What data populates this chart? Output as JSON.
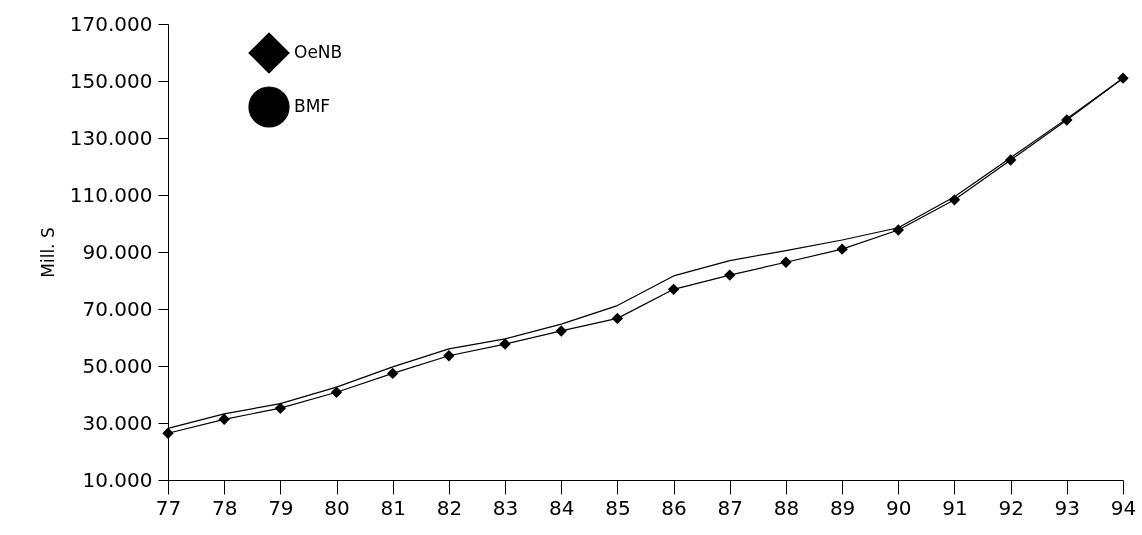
{
  "chart_data": {
    "type": "line",
    "ylabel": "Mill. S",
    "categories": [
      "77",
      "78",
      "79",
      "80",
      "81",
      "82",
      "83",
      "84",
      "85",
      "86",
      "87",
      "88",
      "89",
      "90",
      "91",
      "92",
      "93",
      "94"
    ],
    "series": [
      {
        "name": "OeNB",
        "color": "#000000",
        "marker": "diamond",
        "values": [
          26400,
          31300,
          35200,
          40800,
          47400,
          53600,
          57700,
          62300,
          66700,
          76900,
          81900,
          86400,
          91000,
          97700,
          108300,
          122300,
          136300,
          151000
        ]
      },
      {
        "name": "BMF",
        "color": "#000000",
        "marker": "none",
        "values": [
          28100,
          33200,
          36800,
          42600,
          49700,
          56000,
          59500,
          64700,
          71200,
          81600,
          87000,
          90500,
          94200,
          98500,
          109400,
          123100,
          136800,
          151000
        ]
      }
    ],
    "ylim": [
      10000,
      170000
    ],
    "yticks": [
      {
        "value": 10000,
        "label": "10.000"
      },
      {
        "value": 30000,
        "label": "30.000"
      },
      {
        "value": 50000,
        "label": "50.000"
      },
      {
        "value": 70000,
        "label": "70.000"
      },
      {
        "value": 90000,
        "label": "90.000"
      },
      {
        "value": 110000,
        "label": "110.000"
      },
      {
        "value": 130000,
        "label": "130.000"
      },
      {
        "value": 150000,
        "label": "150.000"
      },
      {
        "value": 170000,
        "label": "170.000"
      }
    ],
    "grid": false,
    "legend": "top left"
  }
}
